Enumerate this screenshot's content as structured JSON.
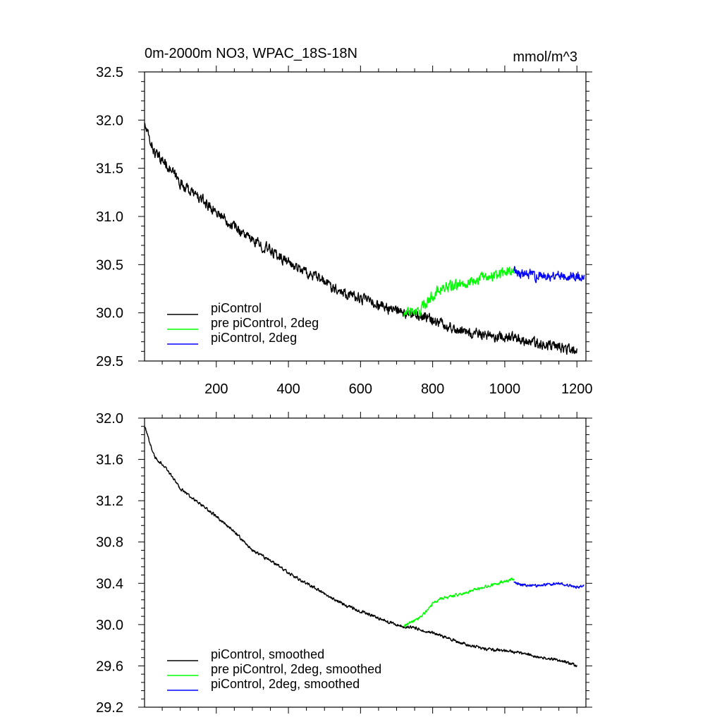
{
  "chart_data": [
    {
      "type": "line",
      "title": "0m-2000m NO3, WPAC_18S-18N",
      "units": "mmol/m^3",
      "xlim": [
        1,
        1225
      ],
      "ylim": [
        29.5,
        32.5
      ],
      "xticks": [
        200,
        400,
        600,
        800,
        1000,
        1200
      ],
      "xtick_labels": [
        "200",
        "400",
        "600",
        "800",
        "1000",
        "1200"
      ],
      "yticks": [
        29.5,
        30.0,
        30.5,
        31.0,
        31.5,
        32.0,
        32.5
      ],
      "ytick_labels": [
        "29.5",
        "30.0",
        "30.5",
        "31.0",
        "31.5",
        "32.0",
        "32.5"
      ],
      "legend_position": "bottom-left",
      "series": [
        {
          "name": "piControl",
          "color": "#000000",
          "noise": 0.045,
          "x": [
            1,
            10,
            30,
            60,
            100,
            150,
            200,
            250,
            300,
            350,
            400,
            450,
            500,
            550,
            600,
            650,
            700,
            720,
            750,
            800,
            850,
            900,
            950,
            1000,
            1050,
            1100,
            1150,
            1200
          ],
          "y": [
            31.95,
            31.85,
            31.65,
            31.55,
            31.35,
            31.2,
            31.05,
            30.9,
            30.75,
            30.65,
            30.52,
            30.42,
            30.32,
            30.22,
            30.15,
            30.08,
            30.02,
            29.98,
            29.98,
            29.93,
            29.85,
            29.8,
            29.75,
            29.75,
            29.72,
            29.68,
            29.65,
            29.6
          ]
        },
        {
          "name": "pre piControl, 2deg",
          "color": "#00ff00",
          "noise": 0.045,
          "x": [
            720,
            740,
            760,
            780,
            800,
            820,
            850,
            900,
            950,
            1000,
            1025
          ],
          "y": [
            29.98,
            30.02,
            30.0,
            30.1,
            30.18,
            30.25,
            30.27,
            30.32,
            30.38,
            30.42,
            30.45
          ]
        },
        {
          "name": "piControl, 2deg",
          "color": "#0000ff",
          "noise": 0.045,
          "x": [
            1025,
            1050,
            1100,
            1150,
            1200,
            1220
          ],
          "y": [
            30.45,
            30.4,
            30.38,
            30.4,
            30.38,
            30.35
          ]
        }
      ]
    },
    {
      "type": "line",
      "xlim": [
        1,
        1225
      ],
      "ylim": [
        29.2,
        32.0
      ],
      "xticks": [
        200,
        400,
        600,
        800,
        1000,
        1200
      ],
      "yticks": [
        29.2,
        29.6,
        30.0,
        30.4,
        30.8,
        31.2,
        31.6,
        32.0
      ],
      "ytick_labels": [
        "29.2",
        "29.6",
        "30.0",
        "30.4",
        "30.8",
        "31.2",
        "31.6",
        "32.0"
      ],
      "legend_position": "bottom-left",
      "series": [
        {
          "name": "piControl, smoothed",
          "color": "#000000",
          "noise": 0.012,
          "x": [
            1,
            10,
            30,
            60,
            100,
            150,
            200,
            250,
            300,
            350,
            400,
            450,
            500,
            550,
            600,
            650,
            700,
            720,
            750,
            800,
            850,
            900,
            950,
            1000,
            1050,
            1100,
            1150,
            1200
          ],
          "y": [
            31.92,
            31.82,
            31.62,
            31.52,
            31.32,
            31.18,
            31.05,
            30.9,
            30.72,
            30.62,
            30.5,
            30.4,
            30.3,
            30.2,
            30.13,
            30.06,
            30.0,
            29.98,
            29.97,
            29.92,
            29.86,
            29.8,
            29.76,
            29.75,
            29.72,
            29.68,
            29.66,
            29.6
          ]
        },
        {
          "name": "pre piControl, 2deg, smoothed",
          "color": "#00ff00",
          "noise": 0.012,
          "x": [
            720,
            740,
            760,
            780,
            800,
            820,
            850,
            900,
            950,
            1000,
            1025
          ],
          "y": [
            29.99,
            30.02,
            30.05,
            30.12,
            30.2,
            30.25,
            30.27,
            30.32,
            30.37,
            30.42,
            30.44
          ]
        },
        {
          "name": "piControl, 2deg, smoothed",
          "color": "#0000ff",
          "noise": 0.012,
          "x": [
            1025,
            1050,
            1100,
            1150,
            1200,
            1220
          ],
          "y": [
            30.42,
            30.38,
            30.38,
            30.4,
            30.36,
            30.38
          ]
        }
      ]
    }
  ]
}
